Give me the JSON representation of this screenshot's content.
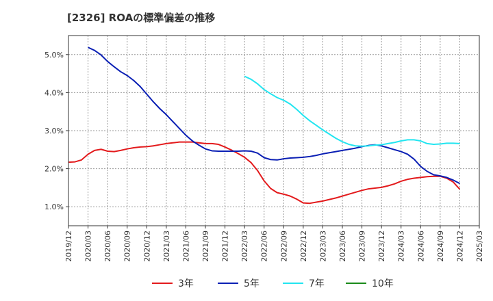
{
  "chart_data": {
    "type": "line",
    "title": "[2326]  ROAの標準偏差の推移",
    "xlabel": "",
    "ylabel": "",
    "ylim": [
      0.5,
      5.5
    ],
    "yticks": [
      1.0,
      2.0,
      3.0,
      4.0,
      5.0
    ],
    "ytick_labels": [
      "1.0%",
      "2.0%",
      "3.0%",
      "4.0%",
      "5.0%"
    ],
    "x_start": "2019-12",
    "x_end": "2025-03",
    "xtick_labels": [
      "2019/12",
      "2020/03",
      "2020/06",
      "2020/09",
      "2020/12",
      "2021/03",
      "2021/06",
      "2021/09",
      "2021/12",
      "2022/03",
      "2022/06",
      "2022/09",
      "2022/12",
      "2023/03",
      "2023/06",
      "2023/09",
      "2023/12",
      "2024/03",
      "2024/06",
      "2024/09",
      "2024/12",
      "2025/03"
    ],
    "grid": true,
    "legend_position": "bottom",
    "series": [
      {
        "name": "3年",
        "color": "#e31a1c",
        "points": [
          [
            "2019-12",
            2.17
          ],
          [
            "2020-01",
            2.18
          ],
          [
            "2020-02",
            2.23
          ],
          [
            "2020-03",
            2.38
          ],
          [
            "2020-04",
            2.48
          ],
          [
            "2020-05",
            2.51
          ],
          [
            "2020-06",
            2.46
          ],
          [
            "2020-07",
            2.45
          ],
          [
            "2020-08",
            2.48
          ],
          [
            "2020-09",
            2.52
          ],
          [
            "2020-10",
            2.55
          ],
          [
            "2020-11",
            2.57
          ],
          [
            "2020-12",
            2.58
          ],
          [
            "2021-01",
            2.6
          ],
          [
            "2021-02",
            2.63
          ],
          [
            "2021-03",
            2.66
          ],
          [
            "2021-04",
            2.68
          ],
          [
            "2021-05",
            2.7
          ],
          [
            "2021-06",
            2.7
          ],
          [
            "2021-07",
            2.7
          ],
          [
            "2021-08",
            2.68
          ],
          [
            "2021-09",
            2.66
          ],
          [
            "2021-10",
            2.66
          ],
          [
            "2021-11",
            2.64
          ],
          [
            "2021-12",
            2.57
          ],
          [
            "2022-01",
            2.49
          ],
          [
            "2022-02",
            2.4
          ],
          [
            "2022-03",
            2.3
          ],
          [
            "2022-04",
            2.16
          ],
          [
            "2022-05",
            1.95
          ],
          [
            "2022-06",
            1.68
          ],
          [
            "2022-07",
            1.48
          ],
          [
            "2022-08",
            1.37
          ],
          [
            "2022-09",
            1.33
          ],
          [
            "2022-10",
            1.28
          ],
          [
            "2022-11",
            1.2
          ],
          [
            "2022-12",
            1.1
          ],
          [
            "2023-01",
            1.09
          ],
          [
            "2023-02",
            1.12
          ],
          [
            "2023-03",
            1.15
          ],
          [
            "2023-04",
            1.19
          ],
          [
            "2023-05",
            1.23
          ],
          [
            "2023-06",
            1.28
          ],
          [
            "2023-07",
            1.33
          ],
          [
            "2023-08",
            1.38
          ],
          [
            "2023-09",
            1.43
          ],
          [
            "2023-10",
            1.47
          ],
          [
            "2023-11",
            1.49
          ],
          [
            "2023-12",
            1.51
          ],
          [
            "2024-01",
            1.55
          ],
          [
            "2024-02",
            1.6
          ],
          [
            "2024-03",
            1.67
          ],
          [
            "2024-04",
            1.72
          ],
          [
            "2024-05",
            1.75
          ],
          [
            "2024-06",
            1.77
          ],
          [
            "2024-07",
            1.79
          ],
          [
            "2024-08",
            1.8
          ],
          [
            "2024-09",
            1.8
          ],
          [
            "2024-10",
            1.75
          ],
          [
            "2024-11",
            1.65
          ],
          [
            "2024-12",
            1.46
          ]
        ]
      },
      {
        "name": "5年",
        "color": "#0a1fb4",
        "points": [
          [
            "2020-03",
            5.19
          ],
          [
            "2020-04",
            5.11
          ],
          [
            "2020-05",
            4.99
          ],
          [
            "2020-06",
            4.82
          ],
          [
            "2020-07",
            4.68
          ],
          [
            "2020-08",
            4.55
          ],
          [
            "2020-09",
            4.45
          ],
          [
            "2020-10",
            4.32
          ],
          [
            "2020-11",
            4.16
          ],
          [
            "2020-12",
            3.96
          ],
          [
            "2021-01",
            3.76
          ],
          [
            "2021-02",
            3.58
          ],
          [
            "2021-03",
            3.42
          ],
          [
            "2021-04",
            3.24
          ],
          [
            "2021-05",
            3.06
          ],
          [
            "2021-06",
            2.88
          ],
          [
            "2021-07",
            2.73
          ],
          [
            "2021-08",
            2.62
          ],
          [
            "2021-09",
            2.52
          ],
          [
            "2021-10",
            2.47
          ],
          [
            "2021-11",
            2.46
          ],
          [
            "2021-12",
            2.46
          ],
          [
            "2022-01",
            2.46
          ],
          [
            "2022-02",
            2.46
          ],
          [
            "2022-03",
            2.47
          ],
          [
            "2022-04",
            2.46
          ],
          [
            "2022-05",
            2.41
          ],
          [
            "2022-06",
            2.29
          ],
          [
            "2022-07",
            2.24
          ],
          [
            "2022-08",
            2.23
          ],
          [
            "2022-09",
            2.26
          ],
          [
            "2022-10",
            2.28
          ],
          [
            "2022-11",
            2.29
          ],
          [
            "2022-12",
            2.3
          ],
          [
            "2023-01",
            2.32
          ],
          [
            "2023-02",
            2.35
          ],
          [
            "2023-03",
            2.39
          ],
          [
            "2023-04",
            2.42
          ],
          [
            "2023-05",
            2.45
          ],
          [
            "2023-06",
            2.48
          ],
          [
            "2023-07",
            2.51
          ],
          [
            "2023-08",
            2.54
          ],
          [
            "2023-09",
            2.58
          ],
          [
            "2023-10",
            2.61
          ],
          [
            "2023-11",
            2.63
          ],
          [
            "2023-12",
            2.6
          ],
          [
            "2024-01",
            2.55
          ],
          [
            "2024-02",
            2.5
          ],
          [
            "2024-03",
            2.45
          ],
          [
            "2024-04",
            2.38
          ],
          [
            "2024-05",
            2.25
          ],
          [
            "2024-06",
            2.06
          ],
          [
            "2024-07",
            1.93
          ],
          [
            "2024-08",
            1.84
          ],
          [
            "2024-09",
            1.81
          ],
          [
            "2024-10",
            1.77
          ],
          [
            "2024-11",
            1.7
          ],
          [
            "2024-12",
            1.61
          ]
        ]
      },
      {
        "name": "7年",
        "color": "#22e5f0",
        "points": [
          [
            "2022-03",
            4.43
          ],
          [
            "2022-04",
            4.35
          ],
          [
            "2022-05",
            4.23
          ],
          [
            "2022-06",
            4.08
          ],
          [
            "2022-07",
            3.97
          ],
          [
            "2022-08",
            3.87
          ],
          [
            "2022-09",
            3.8
          ],
          [
            "2022-10",
            3.7
          ],
          [
            "2022-11",
            3.56
          ],
          [
            "2022-12",
            3.4
          ],
          [
            "2023-01",
            3.26
          ],
          [
            "2023-02",
            3.14
          ],
          [
            "2023-03",
            3.02
          ],
          [
            "2023-04",
            2.91
          ],
          [
            "2023-05",
            2.8
          ],
          [
            "2023-06",
            2.71
          ],
          [
            "2023-07",
            2.64
          ],
          [
            "2023-08",
            2.6
          ],
          [
            "2023-09",
            2.59
          ],
          [
            "2023-10",
            2.6
          ],
          [
            "2023-11",
            2.62
          ],
          [
            "2023-12",
            2.63
          ],
          [
            "2024-01",
            2.66
          ],
          [
            "2024-02",
            2.69
          ],
          [
            "2024-03",
            2.73
          ],
          [
            "2024-04",
            2.76
          ],
          [
            "2024-05",
            2.76
          ],
          [
            "2024-06",
            2.73
          ],
          [
            "2024-07",
            2.66
          ],
          [
            "2024-08",
            2.64
          ],
          [
            "2024-09",
            2.65
          ],
          [
            "2024-10",
            2.67
          ],
          [
            "2024-11",
            2.67
          ],
          [
            "2024-12",
            2.66
          ]
        ]
      },
      {
        "name": "10年",
        "color": "#1a8a1a",
        "points": []
      }
    ]
  }
}
